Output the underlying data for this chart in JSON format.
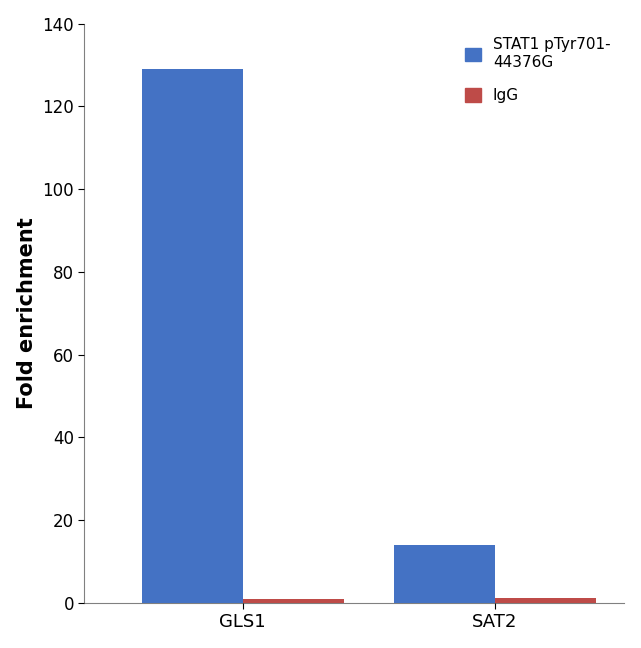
{
  "categories": [
    "GLS1",
    "SAT2"
  ],
  "series": [
    {
      "label": "STAT1 pTyr701-\n44376G",
      "values": [
        129,
        14
      ],
      "color": "#4472C4"
    },
    {
      "label": "IgG",
      "values": [
        1.0,
        1.2
      ],
      "color": "#BE4B48"
    }
  ],
  "ylabel": "Fold enrichment",
  "ylim": [
    0,
    140
  ],
  "yticks": [
    0,
    20,
    40,
    60,
    80,
    100,
    120,
    140
  ],
  "bar_width": 0.28,
  "background_color": "#ffffff",
  "ylabel_fontsize": 15,
  "tick_fontsize": 12,
  "legend_fontsize": 11,
  "xlabel_fontsize": 13,
  "group_positions": [
    0.3,
    1.0
  ]
}
